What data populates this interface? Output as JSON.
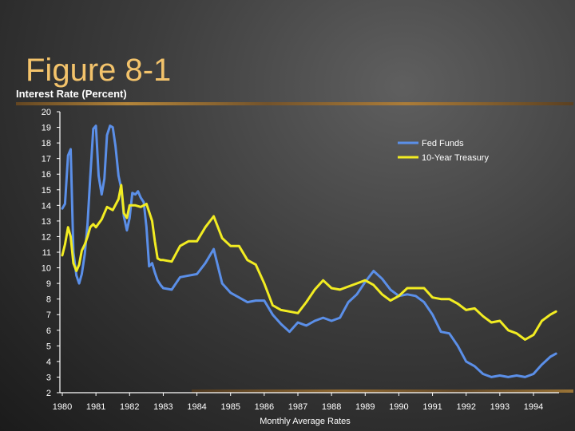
{
  "slide": {
    "title": "Figure 8-1"
  },
  "colors": {
    "title": "#f3c36b",
    "fed_funds": "#5b8fe8",
    "treasury": "#f2ec22",
    "axis": "#ffffff"
  },
  "chart_data": {
    "type": "line",
    "title": "Figure 8-1",
    "ylabel": "Interest Rate (Percent)",
    "xlabel": "Monthly Average Rates",
    "ylim": [
      2,
      20
    ],
    "y_ticks": [
      20,
      19,
      18,
      17,
      16,
      15,
      14,
      13,
      12,
      11,
      10,
      9,
      8,
      7,
      6,
      5,
      4,
      3,
      2
    ],
    "x_ticks": [
      "1980",
      "1981",
      "1982",
      "1983",
      "1984",
      "1985",
      "1986",
      "1987",
      "1988",
      "1989",
      "1990",
      "1991",
      "1992",
      "1993",
      "1994"
    ],
    "x_range": [
      1980,
      1994.8
    ],
    "legend": {
      "position": "top-right",
      "entries": [
        "Fed Funds",
        "10-Year Treasury"
      ]
    },
    "series": [
      {
        "name": "Fed Funds",
        "color": "#5b8fe8",
        "x": [
          1980.0,
          1980.08,
          1980.17,
          1980.25,
          1980.33,
          1980.42,
          1980.5,
          1980.58,
          1980.67,
          1980.75,
          1980.83,
          1980.92,
          1981.0,
          1981.08,
          1981.17,
          1981.25,
          1981.33,
          1981.42,
          1981.5,
          1981.58,
          1981.67,
          1981.75,
          1981.83,
          1981.92,
          1982.0,
          1982.08,
          1982.17,
          1982.25,
          1982.33,
          1982.42,
          1982.5,
          1982.58,
          1982.67,
          1982.75,
          1982.83,
          1982.92,
          1983.0,
          1983.25,
          1983.5,
          1983.75,
          1984.0,
          1984.25,
          1984.5,
          1984.75,
          1985.0,
          1985.25,
          1985.5,
          1985.75,
          1986.0,
          1986.25,
          1986.5,
          1986.75,
          1987.0,
          1987.25,
          1987.5,
          1987.75,
          1988.0,
          1988.25,
          1988.5,
          1988.75,
          1989.0,
          1989.25,
          1989.5,
          1989.75,
          1990.0,
          1990.25,
          1990.5,
          1990.75,
          1991.0,
          1991.25,
          1991.5,
          1991.75,
          1992.0,
          1992.25,
          1992.5,
          1992.75,
          1993.0,
          1993.25,
          1993.5,
          1993.75,
          1994.0,
          1994.25,
          1994.5,
          1994.67
        ],
        "values": [
          13.8,
          14.1,
          17.2,
          17.6,
          11.0,
          9.5,
          9.0,
          9.6,
          10.9,
          12.8,
          15.8,
          18.9,
          19.1,
          15.9,
          14.7,
          15.7,
          18.5,
          19.1,
          19.0,
          17.8,
          15.9,
          15.1,
          13.3,
          12.4,
          13.2,
          14.8,
          14.7,
          14.9,
          14.5,
          14.2,
          12.6,
          10.1,
          10.3,
          9.7,
          9.2,
          8.9,
          8.7,
          8.6,
          9.4,
          9.5,
          9.6,
          10.3,
          11.2,
          9.0,
          8.4,
          8.1,
          7.8,
          7.9,
          7.9,
          7.0,
          6.4,
          5.9,
          6.5,
          6.3,
          6.6,
          6.8,
          6.6,
          6.8,
          7.8,
          8.3,
          9.1,
          9.8,
          9.3,
          8.6,
          8.2,
          8.3,
          8.2,
          7.8,
          7.0,
          5.9,
          5.8,
          5.0,
          4.0,
          3.7,
          3.2,
          3.0,
          3.1,
          3.0,
          3.1,
          3.0,
          3.2,
          3.8,
          4.3,
          4.5
        ]
      },
      {
        "name": "10-Year Treasury",
        "color": "#f2ec22",
        "x": [
          1980.0,
          1980.08,
          1980.17,
          1980.25,
          1980.33,
          1980.42,
          1980.5,
          1980.58,
          1980.67,
          1980.75,
          1980.83,
          1980.92,
          1981.0,
          1981.17,
          1981.33,
          1981.5,
          1981.67,
          1981.75,
          1981.83,
          1981.92,
          1982.0,
          1982.17,
          1982.33,
          1982.5,
          1982.67,
          1982.75,
          1982.83,
          1982.92,
          1983.0,
          1983.25,
          1983.5,
          1983.75,
          1984.0,
          1984.25,
          1984.5,
          1984.75,
          1985.0,
          1985.25,
          1985.5,
          1985.75,
          1986.0,
          1986.25,
          1986.5,
          1986.75,
          1987.0,
          1987.25,
          1987.5,
          1987.75,
          1988.0,
          1988.25,
          1988.5,
          1988.75,
          1989.0,
          1989.25,
          1989.5,
          1989.75,
          1990.0,
          1990.25,
          1990.5,
          1990.75,
          1991.0,
          1991.25,
          1991.5,
          1991.75,
          1992.0,
          1992.25,
          1992.5,
          1992.75,
          1993.0,
          1993.25,
          1993.5,
          1993.75,
          1994.0,
          1994.25,
          1994.5,
          1994.67
        ],
        "values": [
          10.8,
          11.5,
          12.6,
          12.0,
          10.3,
          9.8,
          10.2,
          11.1,
          11.5,
          12.0,
          12.6,
          12.8,
          12.6,
          13.1,
          13.9,
          13.7,
          14.4,
          15.3,
          13.5,
          13.2,
          14.0,
          14.0,
          13.9,
          14.1,
          13.0,
          11.7,
          10.6,
          10.5,
          10.5,
          10.4,
          11.4,
          11.7,
          11.7,
          12.6,
          13.3,
          11.9,
          11.4,
          11.4,
          10.5,
          10.2,
          9.0,
          7.6,
          7.3,
          7.2,
          7.1,
          7.8,
          8.6,
          9.2,
          8.7,
          8.6,
          8.8,
          9.0,
          9.2,
          8.9,
          8.3,
          7.9,
          8.2,
          8.7,
          8.7,
          8.7,
          8.1,
          8.0,
          8.0,
          7.7,
          7.3,
          7.4,
          6.9,
          6.5,
          6.6,
          6.0,
          5.8,
          5.4,
          5.7,
          6.6,
          7.0,
          7.2
        ]
      }
    ]
  }
}
